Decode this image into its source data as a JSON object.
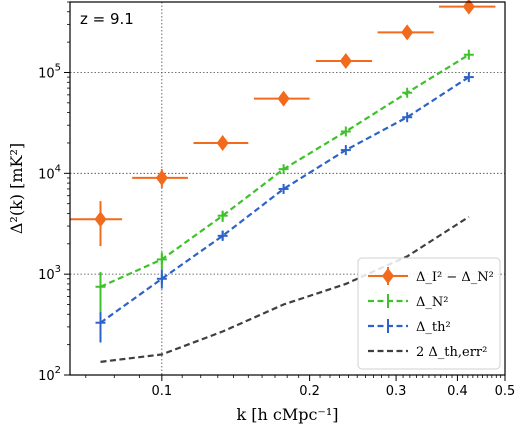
{
  "chart_data": {
    "type": "scatter",
    "annotation": "z = 9.1",
    "xlabel": "k [h cMpc⁻¹]",
    "ylabel": "Δ²(k) [mK²]",
    "xscale": "log",
    "yscale": "log",
    "xlim": [
      0.065,
      0.5
    ],
    "ylim": [
      100,
      500000
    ],
    "x_ticks": [
      {
        "value": 0.1,
        "label": "0.1"
      },
      {
        "value": 0.2,
        "label": "0.2"
      },
      {
        "value": 0.3,
        "label": "0.3"
      },
      {
        "value": 0.4,
        "label": "0.4"
      },
      {
        "value": 0.5,
        "label": "0.5"
      }
    ],
    "y_ticks": [
      {
        "value": 100,
        "base": "10",
        "exp": "2"
      },
      {
        "value": 1000,
        "base": "10",
        "exp": "3"
      },
      {
        "value": 10000,
        "base": "10",
        "exp": "4"
      },
      {
        "value": 100000,
        "base": "10",
        "exp": "5"
      }
    ],
    "grid": "dotted",
    "legend_position": "lower-right",
    "series": [
      {
        "name": "Δ_I² − Δ_N²",
        "style": "diamond-xerr",
        "color": "#f26b1d",
        "points": [
          {
            "x": 0.075,
            "y": 3500,
            "xlo": 0.065,
            "xhi": 0.083,
            "ylo": 1900,
            "yhi": 5300
          },
          {
            "x": 0.1,
            "y": 9000,
            "xlo": 0.087,
            "xhi": 0.113,
            "ylo": 7200,
            "yhi": 11000
          },
          {
            "x": 0.133,
            "y": 20000,
            "xlo": 0.116,
            "xhi": 0.15,
            "ylo": null,
            "yhi": null
          },
          {
            "x": 0.177,
            "y": 55000,
            "xlo": 0.154,
            "xhi": 0.2,
            "ylo": null,
            "yhi": null
          },
          {
            "x": 0.237,
            "y": 130000,
            "xlo": 0.206,
            "xhi": 0.268,
            "ylo": null,
            "yhi": null
          },
          {
            "x": 0.316,
            "y": 250000,
            "xlo": 0.275,
            "xhi": 0.358,
            "ylo": null,
            "yhi": null
          },
          {
            "x": 0.422,
            "y": 450000,
            "xlo": 0.367,
            "xhi": 0.478,
            "ylo": null,
            "yhi": null
          }
        ]
      },
      {
        "name": "Δ_N²",
        "style": "dashed-line-cross",
        "color": "#3ec22a",
        "points": [
          {
            "x": 0.075,
            "y": 750,
            "ylo": 420,
            "yhi": 1050
          },
          {
            "x": 0.1,
            "y": 1400,
            "ylo": 1100,
            "yhi": 1650
          },
          {
            "x": 0.133,
            "y": 3800,
            "ylo": 3300,
            "yhi": 4200
          },
          {
            "x": 0.177,
            "y": 11000
          },
          {
            "x": 0.237,
            "y": 26000
          },
          {
            "x": 0.316,
            "y": 63000
          },
          {
            "x": 0.422,
            "y": 150000
          }
        ]
      },
      {
        "name": "Δ_th²",
        "style": "dashed-line-cross",
        "color": "#2d63c8",
        "points": [
          {
            "x": 0.075,
            "y": 330,
            "ylo": 210,
            "yhi": 550
          },
          {
            "x": 0.1,
            "y": 900,
            "ylo": 720,
            "yhi": 1100
          },
          {
            "x": 0.133,
            "y": 2400,
            "ylo": 2150,
            "yhi": 2700
          },
          {
            "x": 0.177,
            "y": 7000
          },
          {
            "x": 0.237,
            "y": 17000
          },
          {
            "x": 0.316,
            "y": 36000
          },
          {
            "x": 0.422,
            "y": 90000
          }
        ]
      },
      {
        "name": "2 Δ_th,err²",
        "style": "dashed-line",
        "color": "#3f3f3f",
        "points": [
          {
            "x": 0.075,
            "y": 135
          },
          {
            "x": 0.1,
            "y": 160
          },
          {
            "x": 0.133,
            "y": 270
          },
          {
            "x": 0.177,
            "y": 500
          },
          {
            "x": 0.237,
            "y": 800
          },
          {
            "x": 0.316,
            "y": 1500
          },
          {
            "x": 0.422,
            "y": 3700
          }
        ]
      }
    ]
  }
}
